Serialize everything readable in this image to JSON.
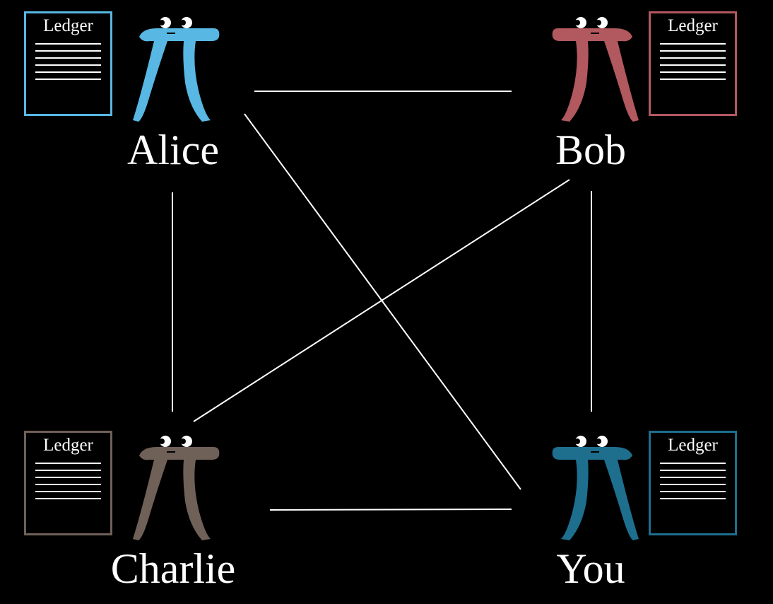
{
  "nodes": [
    {
      "id": "alice",
      "name": "Alice",
      "color": "#58b7e3",
      "ledger_title": "Ledger"
    },
    {
      "id": "bob",
      "name": "Bob",
      "color": "#b2585f",
      "ledger_title": "Ledger"
    },
    {
      "id": "charlie",
      "name": "Charlie",
      "color": "#6f6158",
      "ledger_title": "Ledger"
    },
    {
      "id": "you",
      "name": "You",
      "color": "#1e6e8e",
      "ledger_title": "Ledger"
    }
  ],
  "connections": [
    [
      "alice",
      "bob"
    ],
    [
      "alice",
      "charlie"
    ],
    [
      "alice",
      "you"
    ],
    [
      "bob",
      "charlie"
    ],
    [
      "bob",
      "you"
    ],
    [
      "charlie",
      "you"
    ]
  ]
}
